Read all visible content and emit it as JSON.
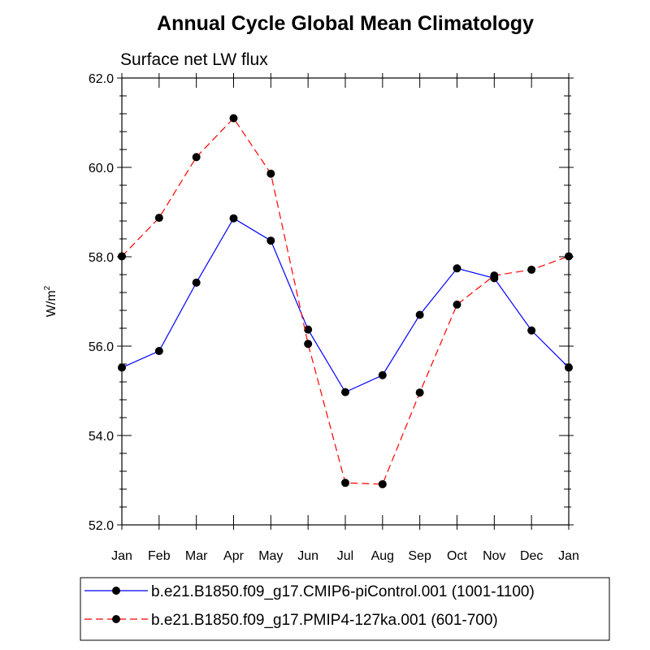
{
  "chart_data": {
    "type": "line",
    "title": "Annual Cycle Global Mean Climatology",
    "subtitle": "Surface net LW flux",
    "ylabel": "W/m",
    "ylabel_superscript": "2",
    "xlabel": "",
    "categories": [
      "Jan",
      "Feb",
      "Mar",
      "Apr",
      "May",
      "Jun",
      "Jul",
      "Aug",
      "Sep",
      "Oct",
      "Nov",
      "Dec",
      "Jan"
    ],
    "ylim": [
      52.0,
      62.0
    ],
    "yticks": [
      "52.0",
      "54.0",
      "56.0",
      "58.0",
      "60.0",
      "62.0"
    ],
    "legend_position": "bottom",
    "grid": false,
    "series": [
      {
        "name": "b.e21.B1850.f09_g17.CMIP6-piControl.001 (1001-1100)",
        "color": "#0000ff",
        "dashed": false,
        "values": [
          55.52,
          55.89,
          57.42,
          58.86,
          58.36,
          56.37,
          54.97,
          55.35,
          56.7,
          57.74,
          57.52,
          56.35,
          55.52
        ]
      },
      {
        "name": "b.e21.B1850.f09_g17.PMIP4-127ka.001 (601-700)",
        "color": "#ff0000",
        "dashed": true,
        "values": [
          58.01,
          58.87,
          60.23,
          61.1,
          59.86,
          56.05,
          52.94,
          52.91,
          54.96,
          56.93,
          57.58,
          57.71,
          58.01
        ]
      }
    ]
  }
}
